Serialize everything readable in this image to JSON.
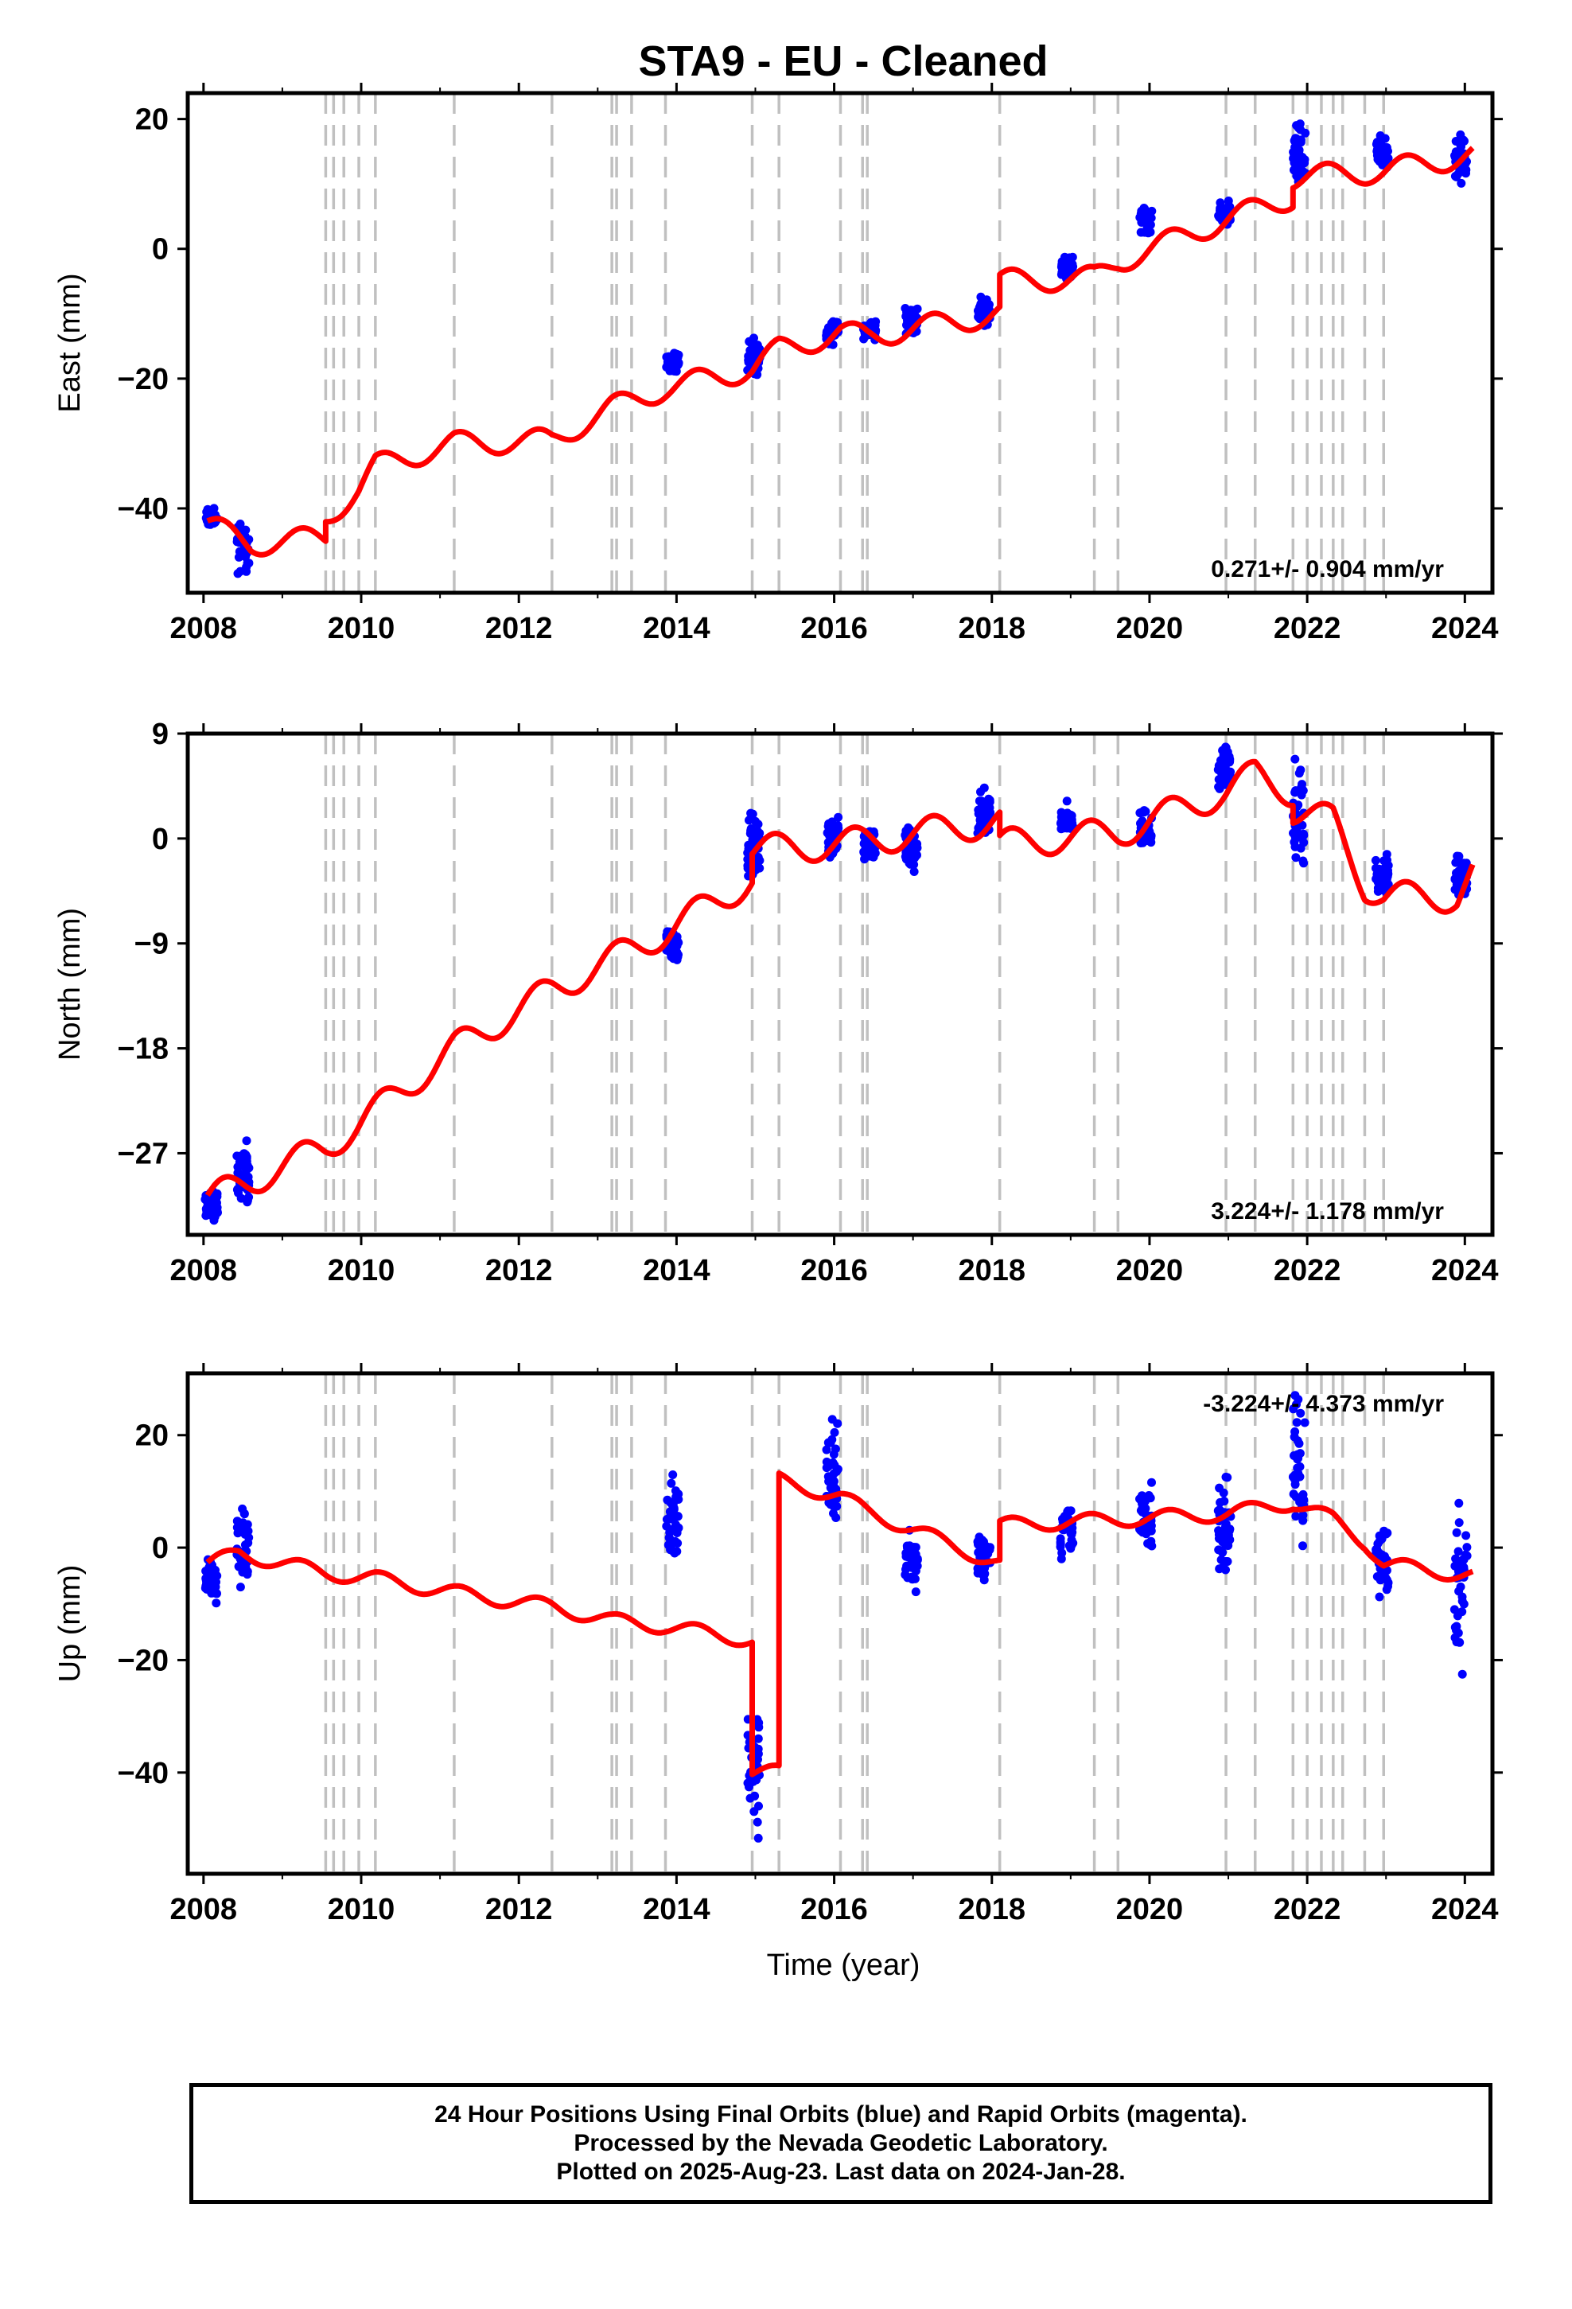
{
  "title": "STA9  - EU - Cleaned",
  "x_axis_label": "Time (year)",
  "footer": {
    "line1": "24 Hour Positions Using Final Orbits (blue) and Rapid Orbits (magenta).",
    "line2": "Processed by the Nevada Geodetic Laboratory.",
    "line3": "Plotted on 2025-Aug-23. Last data on 2024-Jan-28."
  },
  "colors": {
    "observations": "#0000ff",
    "model": "#ff0000",
    "steps": "#c0c0c0"
  },
  "chart_data": [
    {
      "type": "scatter",
      "name": "east",
      "ylabel": "East (mm)",
      "xlim": [
        2007.8,
        2024.35
      ],
      "ylim": [
        -53,
        24
      ],
      "yticks": [
        -40,
        -20,
        0,
        20
      ],
      "xticks": [
        2008,
        2010,
        2012,
        2014,
        2016,
        2018,
        2020,
        2022,
        2024
      ],
      "rate_text": "0.271+/- 0.904 mm/yr",
      "rate_position": "bottom-right",
      "step_epochs": [
        2009.55,
        2009.65,
        2009.78,
        2009.97,
        2010.18,
        2011.18,
        2012.42,
        2013.18,
        2013.24,
        2013.43,
        2013.86,
        2014.96,
        2015.3,
        2016.08,
        2016.36,
        2016.42,
        2018.1,
        2019.3,
        2019.6,
        2020.97,
        2021.34,
        2021.82,
        2022.0,
        2022.18,
        2022.33,
        2022.45,
        2022.73,
        2022.97
      ],
      "model_trend": [
        [
          2008.05,
          -42.5
        ],
        [
          2008.6,
          -45.5
        ],
        [
          2009.55,
          -44.5
        ],
        [
          2009.55,
          -41.5
        ],
        [
          2009.97,
          -37
        ],
        [
          2010.18,
          -33.5
        ],
        [
          2011.18,
          -30
        ],
        [
          2012.42,
          -29.5
        ],
        [
          2013.18,
          -24.5
        ],
        [
          2013.86,
          -21.5
        ],
        [
          2014.96,
          -18.5
        ],
        [
          2015.3,
          -15.5
        ],
        [
          2016.08,
          -13
        ],
        [
          2016.42,
          -13.5
        ],
        [
          2018.1,
          -10
        ],
        [
          2018.1,
          -5
        ],
        [
          2019.3,
          -4.5
        ],
        [
          2019.6,
          -2
        ],
        [
          2020.97,
          4.5
        ],
        [
          2021.82,
          8
        ],
        [
          2021.82,
          11
        ],
        [
          2022.97,
          12
        ],
        [
          2024.1,
          14.5
        ]
      ],
      "model_amp": 1.8,
      "obs_clusters": [
        [
          2008.1,
          -41.5,
          1.5
        ],
        [
          2008.5,
          -46,
          4
        ],
        [
          2013.95,
          -17.5,
          1.5
        ],
        [
          2014.98,
          -17,
          3
        ],
        [
          2015.98,
          -12.5,
          2
        ],
        [
          2016.45,
          -12.5,
          1.5
        ],
        [
          2016.98,
          -11,
          2.5
        ],
        [
          2017.9,
          -9.5,
          2
        ],
        [
          2018.95,
          -3,
          2
        ],
        [
          2019.95,
          4.5,
          2
        ],
        [
          2020.95,
          5.5,
          1.8
        ],
        [
          2021.9,
          14,
          5
        ],
        [
          2022.95,
          15,
          2.5
        ],
        [
          2023.95,
          13.5,
          3.5
        ]
      ]
    },
    {
      "type": "scatter",
      "name": "north",
      "ylabel": "North (mm)",
      "xlim": [
        2007.8,
        2024.35
      ],
      "ylim": [
        -34,
        9
      ],
      "yticks": [
        -27,
        -18,
        -9,
        0,
        9
      ],
      "xticks": [
        2008,
        2010,
        2012,
        2014,
        2016,
        2018,
        2020,
        2022,
        2024
      ],
      "rate_text": "3.224+/- 1.178 mm/yr",
      "rate_position": "bottom-right",
      "step_epochs": [
        2009.55,
        2009.65,
        2009.78,
        2009.97,
        2010.18,
        2011.18,
        2012.42,
        2013.18,
        2013.24,
        2013.43,
        2013.86,
        2014.96,
        2015.3,
        2016.08,
        2016.36,
        2016.42,
        2018.1,
        2019.3,
        2019.6,
        2020.97,
        2021.34,
        2021.82,
        2022.0,
        2022.18,
        2022.33,
        2022.45,
        2022.73,
        2022.97
      ],
      "model_trend": [
        [
          2008.05,
          -31
        ],
        [
          2009.55,
          -26.5
        ],
        [
          2009.97,
          -24.5
        ],
        [
          2011.18,
          -18
        ],
        [
          2012.42,
          -13
        ],
        [
          2013.86,
          -8
        ],
        [
          2014.96,
          -3.5
        ],
        [
          2014.96,
          -1
        ],
        [
          2016.08,
          -0.5
        ],
        [
          2018.1,
          1.5
        ],
        [
          2018.1,
          -0.5
        ],
        [
          2019.6,
          0.5
        ],
        [
          2020.97,
          4
        ],
        [
          2021.34,
          5.5
        ],
        [
          2021.82,
          4
        ],
        [
          2021.82,
          2.5
        ],
        [
          2022.33,
          1.5
        ],
        [
          2022.73,
          -4
        ],
        [
          2022.97,
          -5
        ],
        [
          2023.9,
          -5
        ],
        [
          2024.1,
          -3
        ]
      ],
      "model_amp": 1.3,
      "obs_clusters": [
        [
          2008.1,
          -31.5,
          1.5
        ],
        [
          2008.5,
          -29,
          3
        ],
        [
          2013.95,
          -9.5,
          1.5
        ],
        [
          2014.98,
          -1,
          3.5
        ],
        [
          2015.98,
          0,
          2
        ],
        [
          2016.45,
          -0.5,
          1.5
        ],
        [
          2016.98,
          -1,
          2
        ],
        [
          2017.9,
          2,
          2
        ],
        [
          2018.95,
          1.5,
          1.5
        ],
        [
          2019.95,
          1,
          2
        ],
        [
          2020.95,
          6,
          1.8
        ],
        [
          2021.9,
          2,
          5
        ],
        [
          2022.95,
          -3,
          2
        ],
        [
          2023.95,
          -3,
          2.5
        ]
      ]
    },
    {
      "type": "scatter",
      "name": "up",
      "ylabel": "Up (mm)",
      "xlim": [
        2007.8,
        2024.35
      ],
      "ylim": [
        -58,
        31
      ],
      "yticks": [
        -40,
        -20,
        0,
        20
      ],
      "xticks": [
        2008,
        2010,
        2012,
        2014,
        2016,
        2018,
        2020,
        2022,
        2024
      ],
      "rate_text": "-3.224+/- 4.373 mm/yr",
      "rate_position": "top-right",
      "step_epochs": [
        2009.55,
        2009.65,
        2009.78,
        2009.97,
        2010.18,
        2011.18,
        2012.42,
        2013.18,
        2013.24,
        2013.43,
        2013.86,
        2014.96,
        2015.3,
        2016.08,
        2016.36,
        2016.42,
        2018.1,
        2019.3,
        2019.6,
        2020.97,
        2021.34,
        2021.82,
        2022.0,
        2022.18,
        2022.33,
        2022.45,
        2022.73,
        2022.97
      ],
      "model_trend": [
        [
          2008.05,
          -3
        ],
        [
          2008.45,
          -1
        ],
        [
          2009.55,
          -4.5
        ],
        [
          2010.18,
          -5.5
        ],
        [
          2011.18,
          -8
        ],
        [
          2012.42,
          -10.5
        ],
        [
          2013.18,
          -13
        ],
        [
          2013.86,
          -14
        ],
        [
          2014.96,
          -16.5
        ],
        [
          2014.96,
          -40
        ],
        [
          2015.3,
          -40
        ],
        [
          2015.3,
          12
        ],
        [
          2016.08,
          9
        ],
        [
          2016.42,
          6.5
        ],
        [
          2018.1,
          -3
        ],
        [
          2018.1,
          4
        ],
        [
          2019.6,
          5
        ],
        [
          2020.97,
          6
        ],
        [
          2021.82,
          8
        ],
        [
          2022.33,
          5
        ],
        [
          2022.73,
          1
        ],
        [
          2022.97,
          -3
        ],
        [
          2024.1,
          -5
        ]
      ],
      "model_amp": 1.3,
      "obs_clusters": [
        [
          2008.1,
          -6,
          4
        ],
        [
          2008.5,
          0,
          8
        ],
        [
          2013.95,
          5,
          8
        ],
        [
          2014.98,
          -38,
          13
        ],
        [
          2015.98,
          12,
          10
        ],
        [
          2016.98,
          -2,
          5
        ],
        [
          2017.9,
          -1.5,
          5
        ],
        [
          2018.95,
          3,
          5
        ],
        [
          2019.95,
          5,
          6
        ],
        [
          2020.95,
          4,
          8
        ],
        [
          2021.9,
          12,
          15
        ],
        [
          2022.95,
          -2,
          7
        ],
        [
          2023.95,
          -6,
          14
        ]
      ]
    }
  ]
}
